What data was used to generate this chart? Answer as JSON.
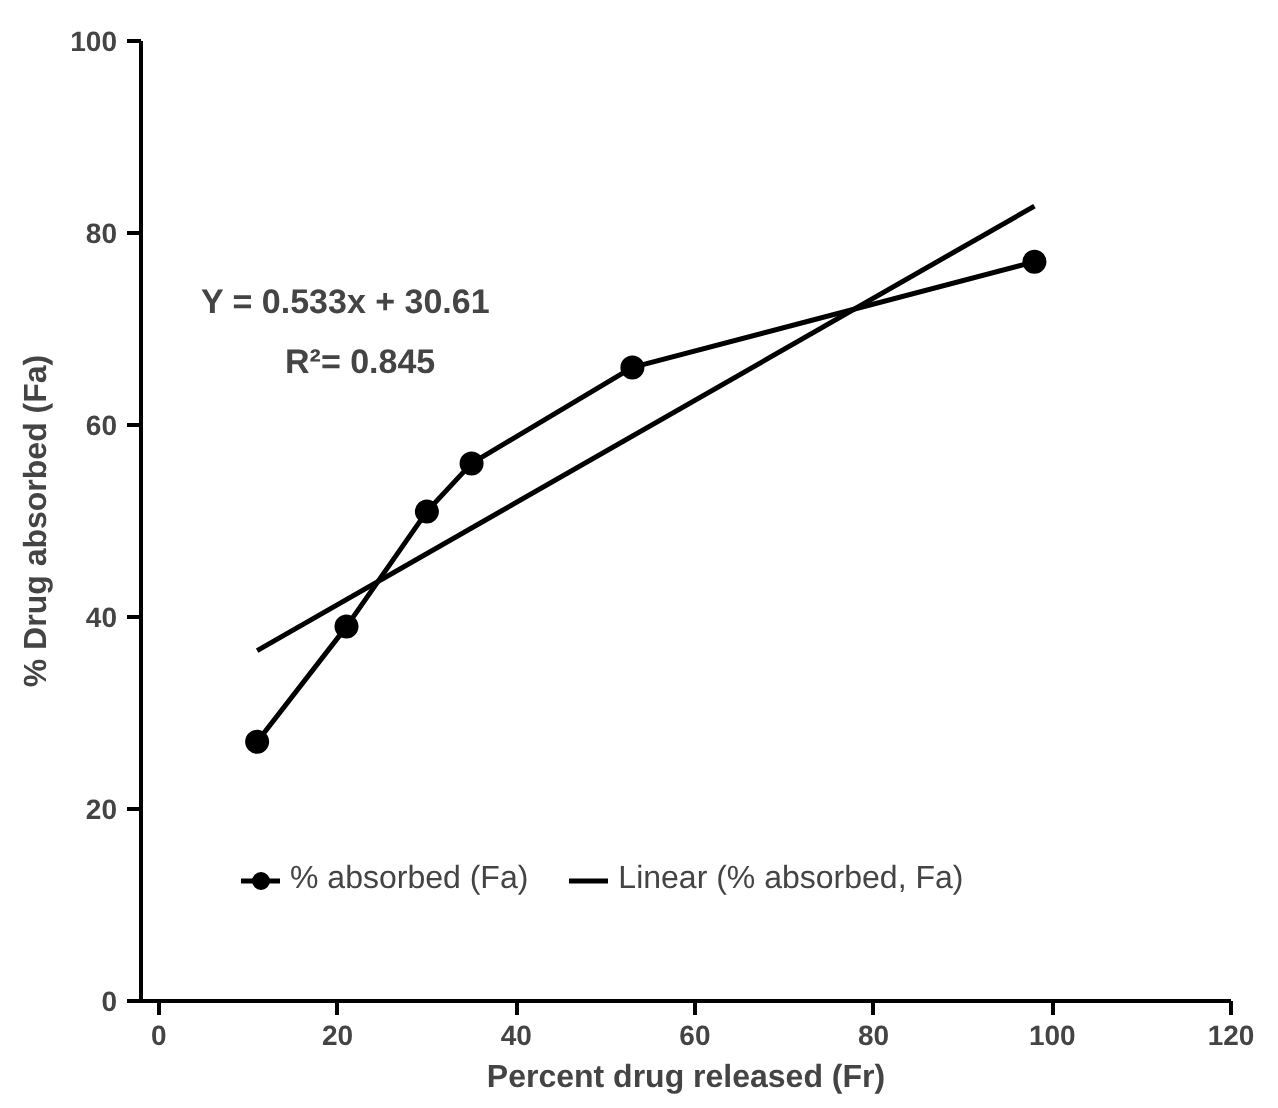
{
  "chart_data": {
    "type": "line",
    "xlabel": "Percent drug released (Fr)",
    "ylabel": "% Drug absorbed (Fa)",
    "annotations": [
      "Y = 0.533x + 30.61",
      "R²= 0.845"
    ],
    "xlim": [
      -2,
      120
    ],
    "ylim": [
      0,
      100
    ],
    "xticks": [
      0,
      20,
      40,
      60,
      80,
      100,
      120
    ],
    "yticks": [
      0,
      20,
      40,
      60,
      80,
      100
    ],
    "grid": false,
    "legend": "bottom left",
    "series": [
      {
        "name": "% absorbed (Fa)",
        "color": "#000000",
        "marker": "circle",
        "x": [
          11,
          21,
          30,
          35,
          53,
          98
        ],
        "values": [
          27,
          39,
          51,
          56,
          66,
          77
        ]
      },
      {
        "name": "Linear (% absorbed, Fa)",
        "color": "#000000",
        "marker": "none",
        "x": [
          11,
          98
        ],
        "values": [
          36.5,
          82.8
        ]
      }
    ]
  }
}
